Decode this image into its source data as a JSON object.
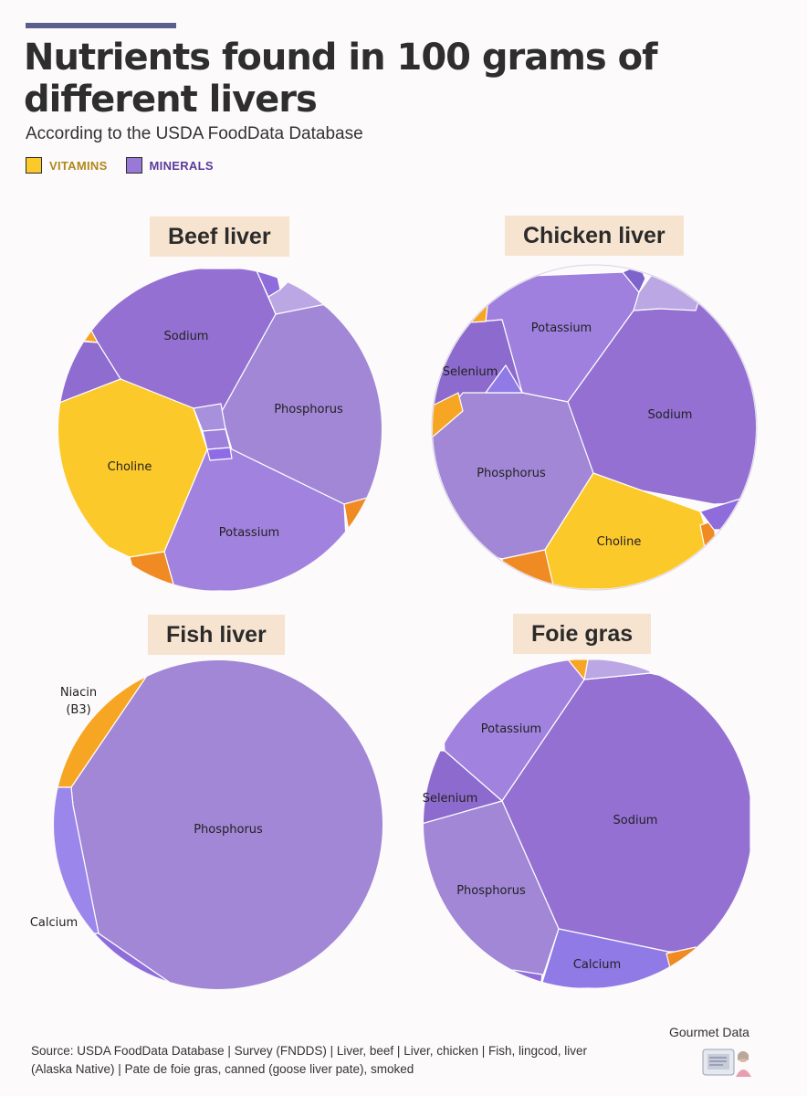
{
  "header": {
    "title": "Nutrients found in 100 grams of different livers",
    "subtitle": "According to the USDA FoodData Database"
  },
  "legend": [
    {
      "label": "VITAMINS",
      "color": "#fcc92b",
      "text_color": "#b0881a"
    },
    {
      "label": "MINERALS",
      "color": "#9a78d8",
      "text_color": "#5b3b9a"
    }
  ],
  "footer": {
    "source": "Source: USDA FoodData Database | Survey (FNDDS) | Liver, beef | Liver, chicken | Fish, lingcod, liver (Alaska Native) | Pate de foie gras, canned (goose liver pate), smoked",
    "brand": "Gourmet Data"
  },
  "chart_data": [
    {
      "type": "voronoi-treemap",
      "title": "Beef liver",
      "segments": [
        {
          "name": "Sodium",
          "label": "Sodium",
          "category": "mineral"
        },
        {
          "name": "Phosphorus",
          "label": "Phosphorus",
          "category": "mineral"
        },
        {
          "name": "Choline",
          "label": "Choline",
          "category": "vitamin"
        },
        {
          "name": "Potassium",
          "label": "Potassium",
          "category": "mineral"
        }
      ]
    },
    {
      "type": "voronoi-treemap",
      "title": "Chicken liver",
      "segments": [
        {
          "name": "Potassium",
          "label": "Potassium",
          "category": "mineral"
        },
        {
          "name": "Selenium",
          "label": "Selenium",
          "category": "mineral"
        },
        {
          "name": "Sodium",
          "label": "Sodium",
          "category": "mineral"
        },
        {
          "name": "Phosphorus",
          "label": "Phosphorus",
          "category": "mineral"
        },
        {
          "name": "Choline",
          "label": "Choline",
          "category": "vitamin"
        }
      ]
    },
    {
      "type": "voronoi-treemap",
      "title": "Fish liver",
      "segments": [
        {
          "name": "Niacin (B3)",
          "label": "Niacin",
          "label2": "(B3)",
          "category": "vitamin"
        },
        {
          "name": "Phosphorus",
          "label": "Phosphorus",
          "category": "mineral"
        },
        {
          "name": "Calcium",
          "label": "Calcium",
          "category": "mineral"
        }
      ]
    },
    {
      "type": "voronoi-treemap",
      "title": "Foie gras",
      "segments": [
        {
          "name": "Potassium",
          "label": "Potassium",
          "category": "mineral"
        },
        {
          "name": "Selenium",
          "label": "Selenium",
          "category": "mineral"
        },
        {
          "name": "Sodium",
          "label": "Sodium",
          "category": "mineral"
        },
        {
          "name": "Phosphorus",
          "label": "Phosphorus",
          "category": "mineral"
        },
        {
          "name": "Calcium",
          "label": "Calcium",
          "category": "mineral"
        }
      ]
    }
  ]
}
